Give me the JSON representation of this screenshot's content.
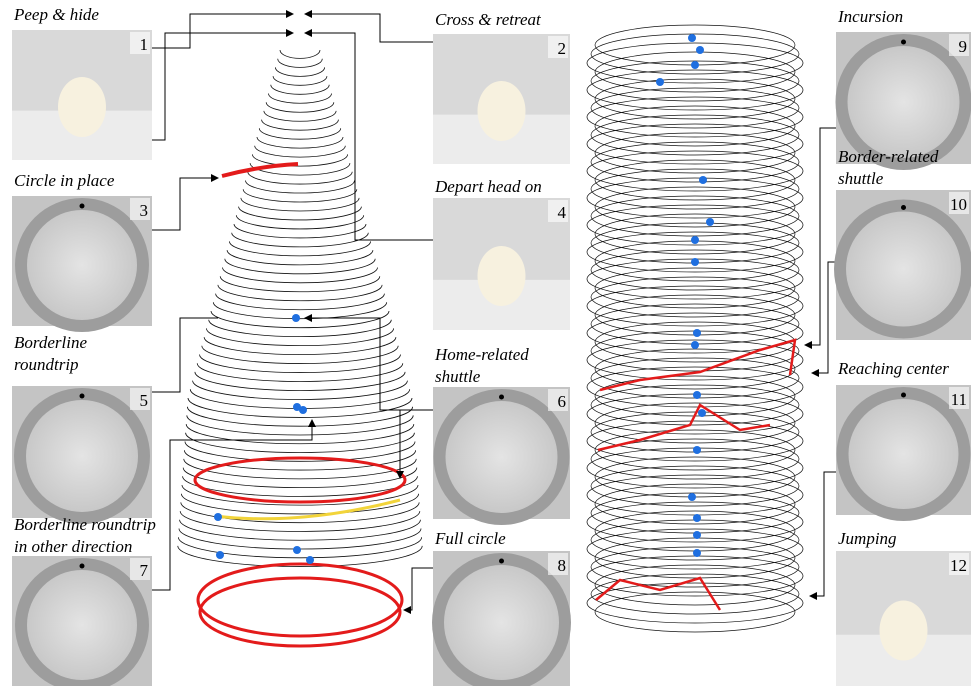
{
  "panels": [
    {
      "title": [
        "Peep & hide"
      ],
      "number": "1"
    },
    {
      "title": [
        "Cross & retreat"
      ],
      "number": "2"
    },
    {
      "title": [
        "Circle in place"
      ],
      "number": "3"
    },
    {
      "title": [
        "Depart head on"
      ],
      "number": "4"
    },
    {
      "title": [
        "Borderline",
        "roundtrip"
      ],
      "number": "5"
    },
    {
      "title": [
        "Home-related",
        "shuttle"
      ],
      "number": "6"
    },
    {
      "title": [
        "Borderline roundtrip",
        "in other direction"
      ],
      "number": "7"
    },
    {
      "title": [
        "Full circle"
      ],
      "number": "8"
    },
    {
      "title": [
        "Incursion"
      ],
      "number": "9"
    },
    {
      "title": [
        "Border-related",
        "shuttle"
      ],
      "number": "10"
    },
    {
      "title": [
        "Reaching center"
      ],
      "number": "11"
    },
    {
      "title": [
        "Jumping"
      ],
      "number": "12"
    }
  ]
}
